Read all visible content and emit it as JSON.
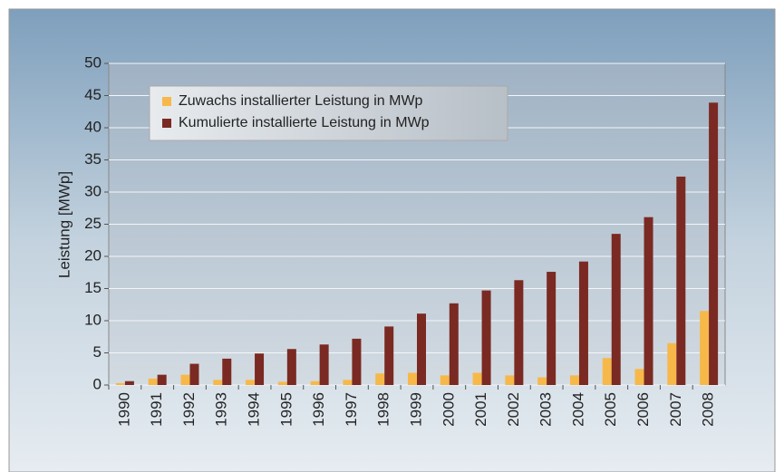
{
  "chart_data": {
    "type": "bar",
    "y_label": "Leistung [MWp]",
    "categories": [
      "1990",
      "1991",
      "1992",
      "1993",
      "1994",
      "1995",
      "1996",
      "1997",
      "1998",
      "1999",
      "2000",
      "2001",
      "2002",
      "2003",
      "2004",
      "2005",
      "2006",
      "2007",
      "2008"
    ],
    "series": [
      {
        "name": "Zuwachs installierter Leistung in MWp",
        "color": "#f7b84a",
        "values": [
          0.3,
          1.0,
          1.6,
          0.8,
          0.8,
          0.5,
          0.6,
          0.8,
          1.8,
          1.9,
          1.5,
          1.9,
          1.5,
          1.2,
          1.5,
          4.2,
          2.5,
          6.5,
          11.5
        ]
      },
      {
        "name": "Kumulierte installierte Leistung in MWp",
        "color": "#7a2a22",
        "values": [
          0.6,
          1.6,
          3.3,
          4.1,
          4.9,
          5.6,
          6.3,
          7.2,
          9.1,
          11.1,
          12.7,
          14.7,
          16.3,
          17.6,
          19.2,
          23.5,
          26.1,
          32.4,
          43.9
        ]
      }
    ],
    "ylim": [
      0,
      50
    ],
    "yticks": [
      0,
      5,
      10,
      15,
      20,
      25,
      30,
      35,
      40,
      45,
      50
    ],
    "grid": true,
    "legend": "top-left"
  }
}
